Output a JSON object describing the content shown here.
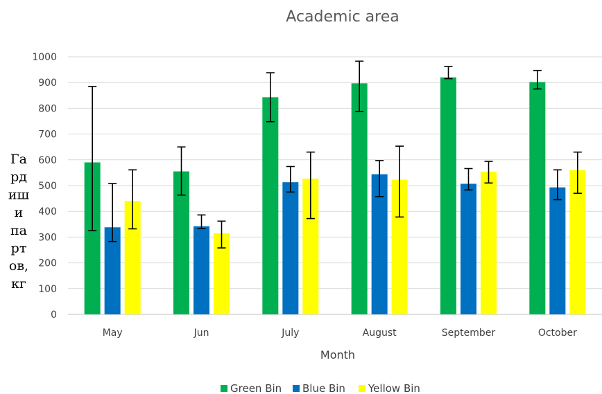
{
  "chart_data": {
    "type": "bar",
    "title": "Academic area",
    "xlabel": "Month",
    "ylabel_lines": [
      "Га",
      "рд",
      "иш",
      "и",
      "па",
      "рт",
      "ов,",
      "кг"
    ],
    "categories": [
      "May",
      "Jun",
      "July",
      "August",
      "September",
      "October"
    ],
    "ylim": [
      0,
      1000
    ],
    "yticks": [
      0,
      100,
      200,
      300,
      400,
      500,
      600,
      700,
      800,
      900,
      1000
    ],
    "grid": true,
    "legend_position": "bottom",
    "series": [
      {
        "name": "Green Bin",
        "color": "#00b050",
        "values": [
          590,
          555,
          843,
          897,
          920,
          902
        ],
        "error_low": [
          325,
          463,
          748,
          787,
          915,
          875
        ],
        "error_high": [
          885,
          650,
          938,
          983,
          962,
          947
        ]
      },
      {
        "name": "Blue Bin",
        "color": "#0070c0",
        "values": [
          338,
          342,
          513,
          544,
          507,
          493
        ],
        "error_low": [
          283,
          333,
          475,
          457,
          483,
          445
        ],
        "error_high": [
          508,
          386,
          574,
          597,
          566,
          561
        ]
      },
      {
        "name": "Yellow Bin",
        "color": "#ffff00",
        "values": [
          440,
          315,
          527,
          523,
          554,
          560
        ],
        "error_low": [
          332,
          258,
          372,
          378,
          510,
          470
        ],
        "error_high": [
          561,
          362,
          630,
          653,
          594,
          630
        ]
      }
    ]
  }
}
